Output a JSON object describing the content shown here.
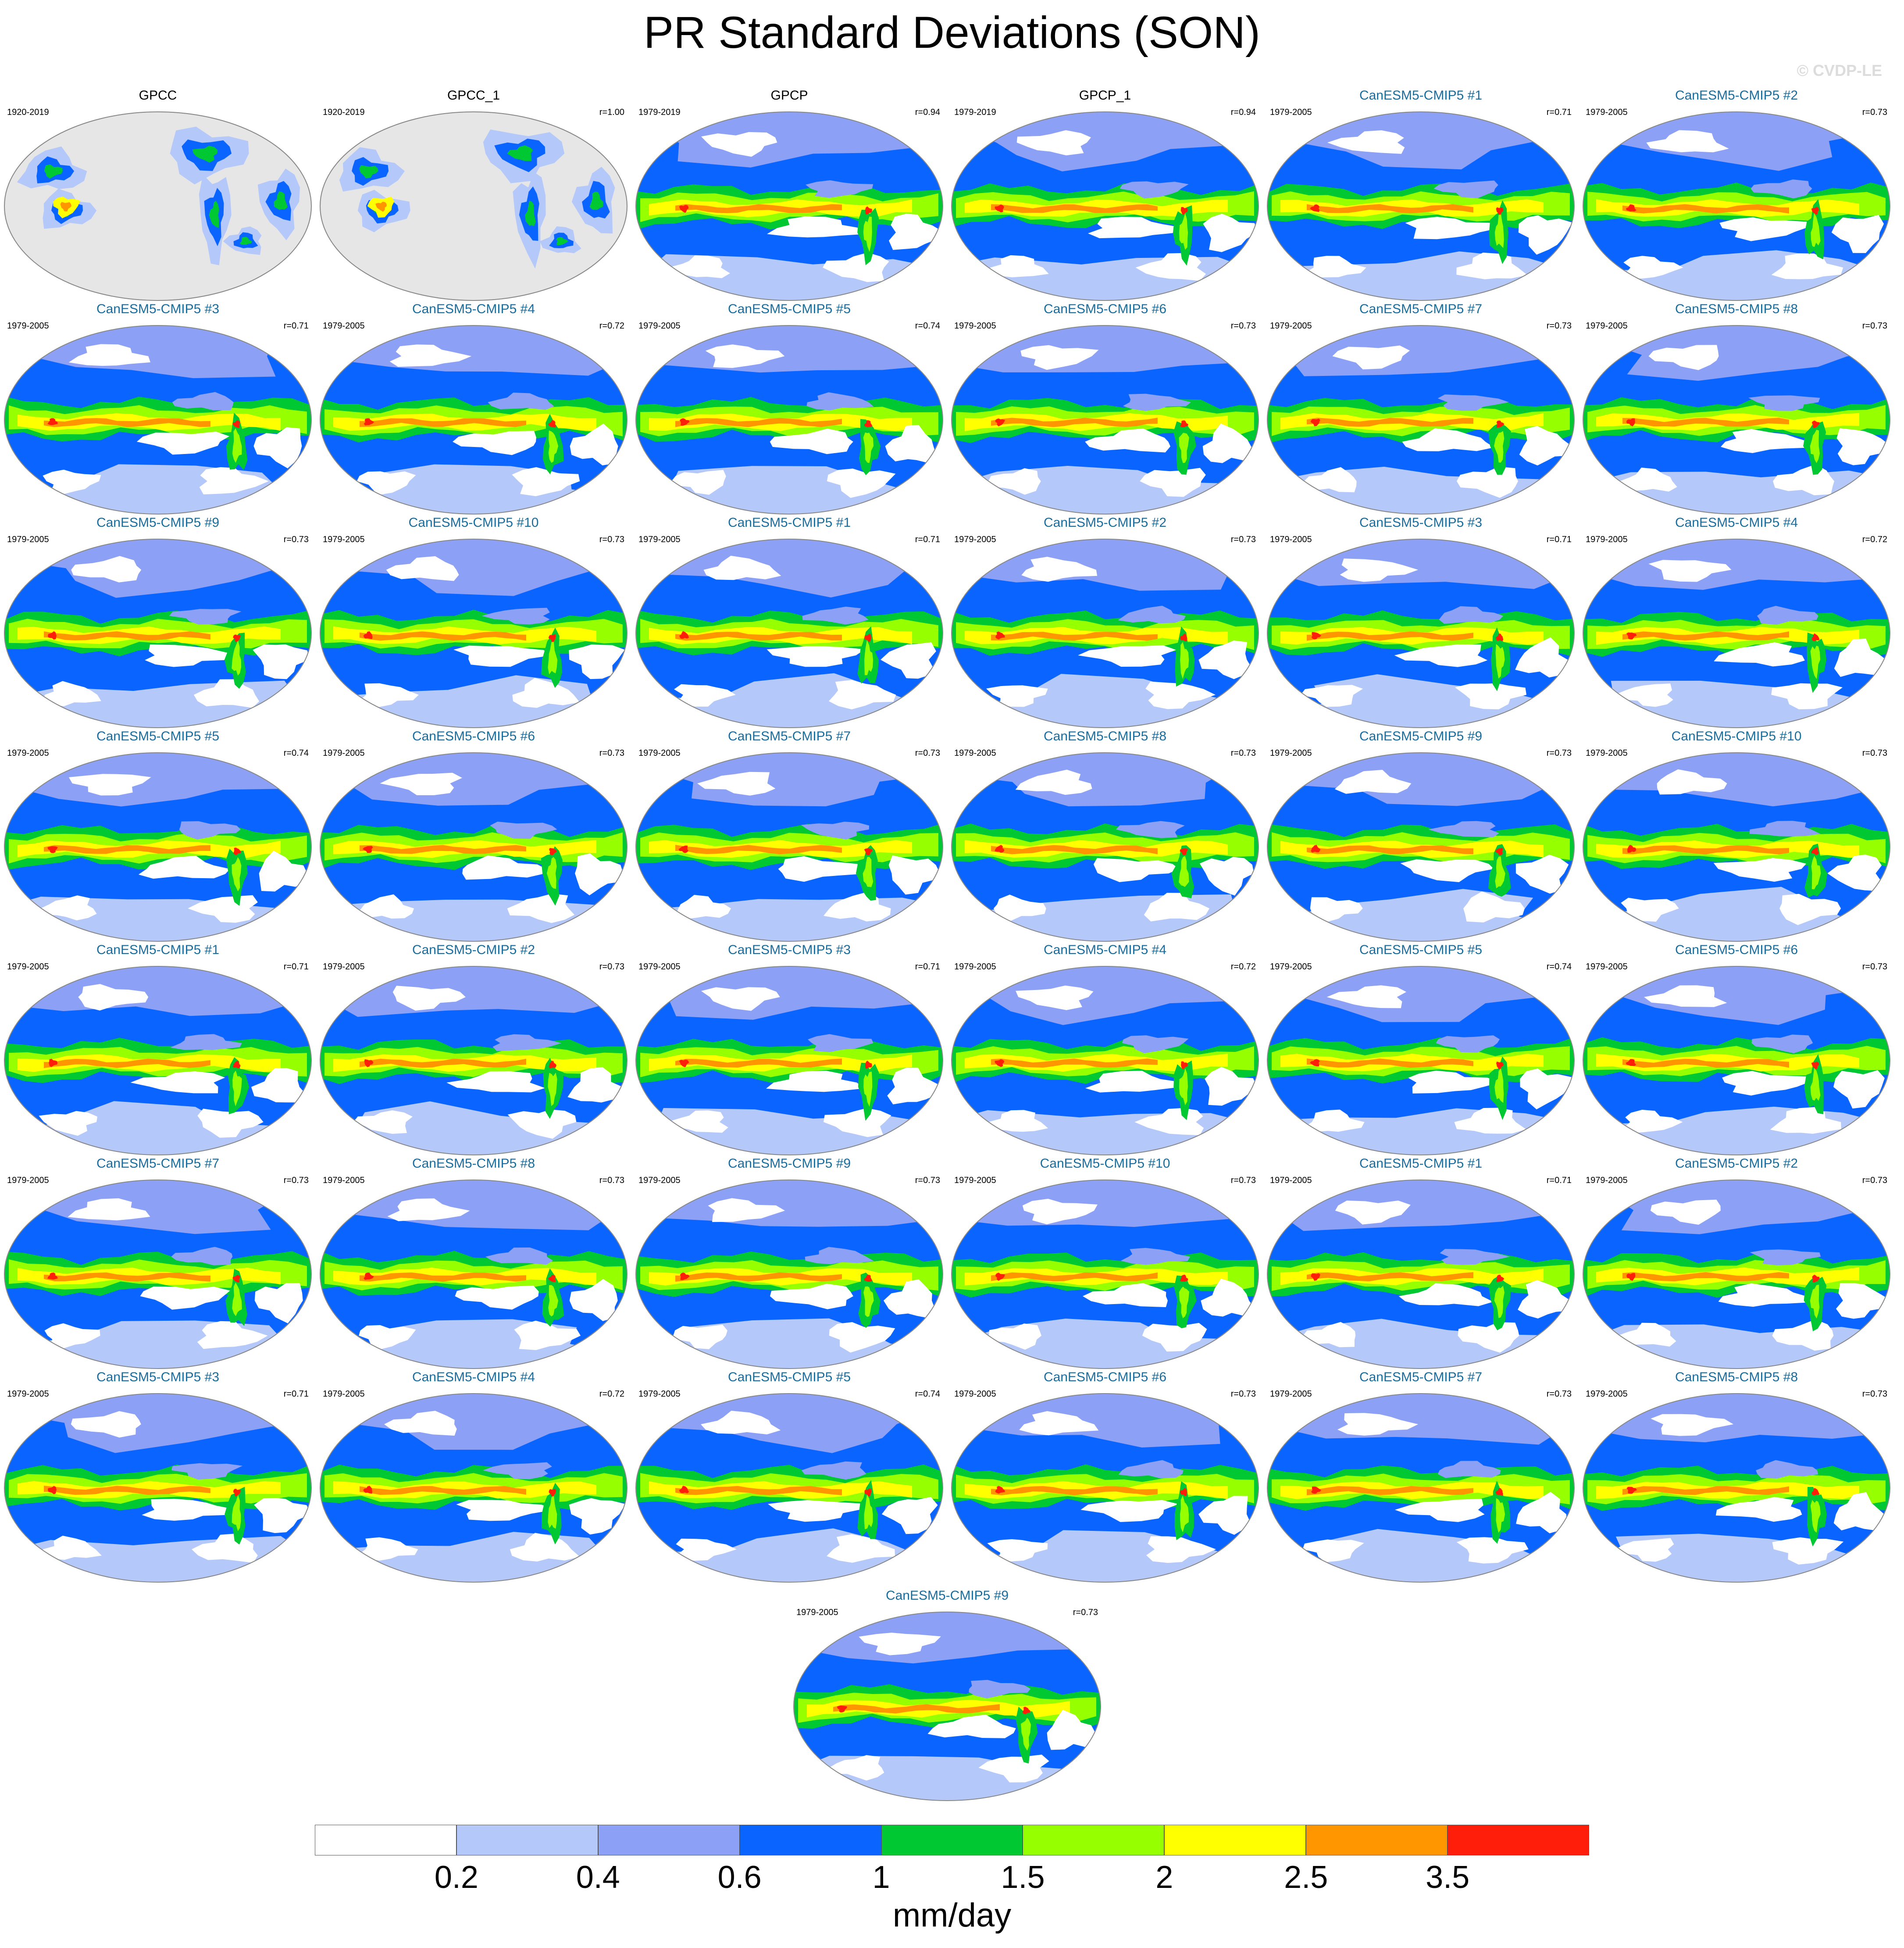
{
  "figure": {
    "title": "PR Standard Deviations (SON)",
    "copyright": "© CVDP-LE",
    "colorbar": {
      "units": "mm/day",
      "colors": [
        "#ffffff",
        "#b4c8fa",
        "#8ca0f5",
        "#0a64ff",
        "#00c832",
        "#96ff00",
        "#ffff00",
        "#ff9600",
        "#ff1e0a"
      ],
      "tick_labels": [
        "0.2",
        "0.4",
        "0.6",
        "1",
        "1.5",
        "2",
        "2.5",
        "3.5"
      ]
    }
  },
  "chart_data": {
    "type": "heatmap",
    "title": "PR Standard Deviations (SON)",
    "variable": "precipitation standard deviation",
    "season": "SON",
    "units": "mm/day",
    "contour_levels": [
      0.2,
      0.4,
      0.6,
      1,
      1.5,
      2,
      2.5,
      3.5
    ],
    "panels": [
      {
        "name": "GPCC",
        "period": "1920-2019",
        "r": "",
        "kind": "obs-land"
      },
      {
        "name": "GPCC_1",
        "period": "1920-2019",
        "r": "r=1.00",
        "kind": "obs-land"
      },
      {
        "name": "GPCP",
        "period": "1979-2019",
        "r": "r=0.94",
        "kind": "obs"
      },
      {
        "name": "GPCP_1",
        "period": "1979-2019",
        "r": "r=0.94",
        "kind": "obs"
      },
      {
        "name": "CanESM5-CMIP5 #1",
        "period": "1979-2005",
        "r": "r=0.71",
        "kind": "model"
      },
      {
        "name": "CanESM5-CMIP5 #2",
        "period": "1979-2005",
        "r": "r=0.73",
        "kind": "model"
      },
      {
        "name": "CanESM5-CMIP5 #3",
        "period": "1979-2005",
        "r": "r=0.71",
        "kind": "model"
      },
      {
        "name": "CanESM5-CMIP5 #4",
        "period": "1979-2005",
        "r": "r=0.72",
        "kind": "model"
      },
      {
        "name": "CanESM5-CMIP5 #5",
        "period": "1979-2005",
        "r": "r=0.74",
        "kind": "model"
      },
      {
        "name": "CanESM5-CMIP5 #6",
        "period": "1979-2005",
        "r": "r=0.73",
        "kind": "model"
      },
      {
        "name": "CanESM5-CMIP5 #7",
        "period": "1979-2005",
        "r": "r=0.73",
        "kind": "model"
      },
      {
        "name": "CanESM5-CMIP5 #8",
        "period": "1979-2005",
        "r": "r=0.73",
        "kind": "model"
      },
      {
        "name": "CanESM5-CMIP5 #9",
        "period": "1979-2005",
        "r": "r=0.73",
        "kind": "model"
      },
      {
        "name": "CanESM5-CMIP5 #10",
        "period": "1979-2005",
        "r": "r=0.73",
        "kind": "model"
      },
      {
        "name": "CanESM5-CMIP5 #1",
        "period": "1979-2005",
        "r": "r=0.71",
        "kind": "model"
      },
      {
        "name": "CanESM5-CMIP5 #2",
        "period": "1979-2005",
        "r": "r=0.73",
        "kind": "model"
      },
      {
        "name": "CanESM5-CMIP5 #3",
        "period": "1979-2005",
        "r": "r=0.71",
        "kind": "model"
      },
      {
        "name": "CanESM5-CMIP5 #4",
        "period": "1979-2005",
        "r": "r=0.72",
        "kind": "model"
      },
      {
        "name": "CanESM5-CMIP5 #5",
        "period": "1979-2005",
        "r": "r=0.74",
        "kind": "model"
      },
      {
        "name": "CanESM5-CMIP5 #6",
        "period": "1979-2005",
        "r": "r=0.73",
        "kind": "model"
      },
      {
        "name": "CanESM5-CMIP5 #7",
        "period": "1979-2005",
        "r": "r=0.73",
        "kind": "model"
      },
      {
        "name": "CanESM5-CMIP5 #8",
        "period": "1979-2005",
        "r": "r=0.73",
        "kind": "model"
      },
      {
        "name": "CanESM5-CMIP5 #9",
        "period": "1979-2005",
        "r": "r=0.73",
        "kind": "model"
      },
      {
        "name": "CanESM5-CMIP5 #10",
        "period": "1979-2005",
        "r": "r=0.73",
        "kind": "model"
      },
      {
        "name": "CanESM5-CMIP5 #1",
        "period": "1979-2005",
        "r": "r=0.71",
        "kind": "model"
      },
      {
        "name": "CanESM5-CMIP5 #2",
        "period": "1979-2005",
        "r": "r=0.73",
        "kind": "model"
      },
      {
        "name": "CanESM5-CMIP5 #3",
        "period": "1979-2005",
        "r": "r=0.71",
        "kind": "model"
      },
      {
        "name": "CanESM5-CMIP5 #4",
        "period": "1979-2005",
        "r": "r=0.72",
        "kind": "model"
      },
      {
        "name": "CanESM5-CMIP5 #5",
        "period": "1979-2005",
        "r": "r=0.74",
        "kind": "model"
      },
      {
        "name": "CanESM5-CMIP5 #6",
        "period": "1979-2005",
        "r": "r=0.73",
        "kind": "model"
      },
      {
        "name": "CanESM5-CMIP5 #7",
        "period": "1979-2005",
        "r": "r=0.73",
        "kind": "model"
      },
      {
        "name": "CanESM5-CMIP5 #8",
        "period": "1979-2005",
        "r": "r=0.73",
        "kind": "model"
      },
      {
        "name": "CanESM5-CMIP5 #9",
        "period": "1979-2005",
        "r": "r=0.73",
        "kind": "model"
      },
      {
        "name": "CanESM5-CMIP5 #10",
        "period": "1979-2005",
        "r": "r=0.73",
        "kind": "model"
      },
      {
        "name": "CanESM5-CMIP5 #1",
        "period": "1979-2005",
        "r": "r=0.71",
        "kind": "model"
      },
      {
        "name": "CanESM5-CMIP5 #2",
        "period": "1979-2005",
        "r": "r=0.73",
        "kind": "model"
      },
      {
        "name": "CanESM5-CMIP5 #3",
        "period": "1979-2005",
        "r": "r=0.71",
        "kind": "model"
      },
      {
        "name": "CanESM5-CMIP5 #4",
        "period": "1979-2005",
        "r": "r=0.72",
        "kind": "model"
      },
      {
        "name": "CanESM5-CMIP5 #5",
        "period": "1979-2005",
        "r": "r=0.74",
        "kind": "model"
      },
      {
        "name": "CanESM5-CMIP5 #6",
        "period": "1979-2005",
        "r": "r=0.73",
        "kind": "model"
      },
      {
        "name": "CanESM5-CMIP5 #7",
        "period": "1979-2005",
        "r": "r=0.73",
        "kind": "model"
      },
      {
        "name": "CanESM5-CMIP5 #8",
        "period": "1979-2005",
        "r": "r=0.73",
        "kind": "model"
      },
      {
        "name": "CanESM5-CMIP5 #9",
        "period": "1979-2005",
        "r": "r=0.73",
        "kind": "model"
      }
    ]
  }
}
